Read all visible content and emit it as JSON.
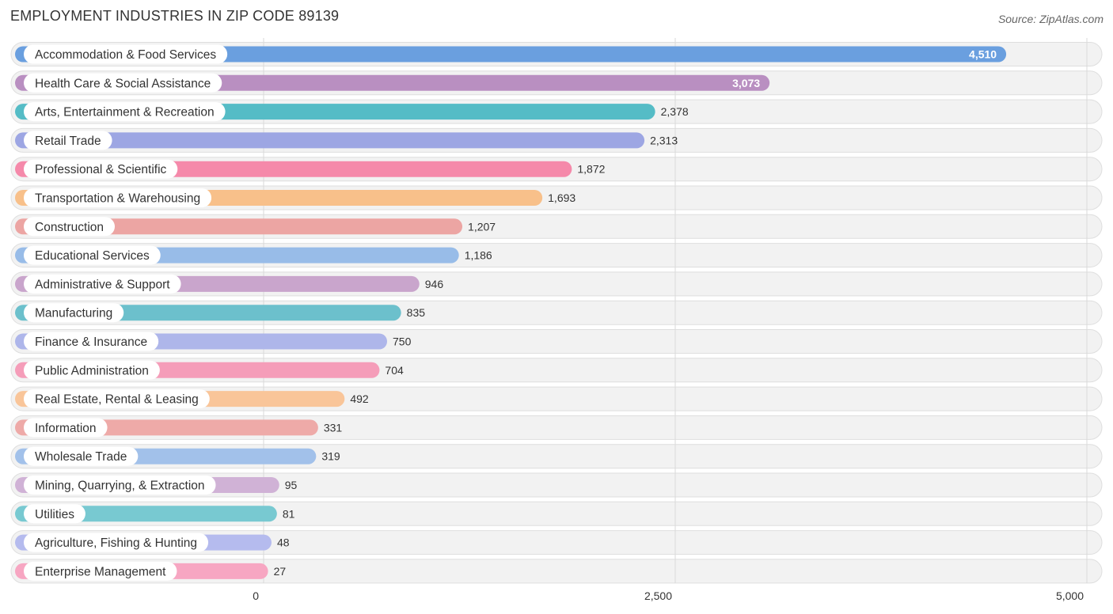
{
  "header": {
    "title": "EMPLOYMENT INDUSTRIES IN ZIP CODE 89139",
    "source": "Source: ZipAtlas.com"
  },
  "chart_data": {
    "type": "bar",
    "orientation": "horizontal",
    "title": "EMPLOYMENT INDUSTRIES IN ZIP CODE 89139",
    "xlabel": "",
    "ylabel": "",
    "xlim": [
      0,
      5000
    ],
    "xticks": [
      0,
      2500,
      5000
    ],
    "xtick_labels": [
      "0",
      "2,500",
      "5,000"
    ],
    "grid": true,
    "categories": [
      "Accommodation & Food Services",
      "Health Care & Social Assistance",
      "Arts, Entertainment & Recreation",
      "Retail Trade",
      "Professional & Scientific",
      "Transportation & Warehousing",
      "Construction",
      "Educational Services",
      "Administrative & Support",
      "Manufacturing",
      "Finance & Insurance",
      "Public Administration",
      "Real Estate, Rental & Leasing",
      "Information",
      "Wholesale Trade",
      "Mining, Quarrying, & Extraction",
      "Utilities",
      "Agriculture, Fishing & Hunting",
      "Enterprise Management"
    ],
    "values": [
      4510,
      3073,
      2378,
      2313,
      1872,
      1693,
      1207,
      1186,
      946,
      835,
      750,
      704,
      492,
      331,
      319,
      95,
      81,
      48,
      27
    ],
    "value_labels": [
      "4,510",
      "3,073",
      "2,378",
      "2,313",
      "1,872",
      "1,693",
      "1,207",
      "1,186",
      "946",
      "835",
      "750",
      "704",
      "492",
      "331",
      "319",
      "95",
      "81",
      "48",
      "27"
    ],
    "colors": [
      "#6a9fdf",
      "#b98fc1",
      "#55bcc6",
      "#9da6e3",
      "#f589aa",
      "#f8c08a",
      "#eca5a3",
      "#98bce8",
      "#c9a5cc",
      "#6cc0cc",
      "#aeb6ea",
      "#f59db9",
      "#f9c599",
      "#eeaaa8",
      "#a2c1ea",
      "#d0b2d6",
      "#78c9d1",
      "#b5bbee",
      "#f7a6c2"
    ]
  }
}
